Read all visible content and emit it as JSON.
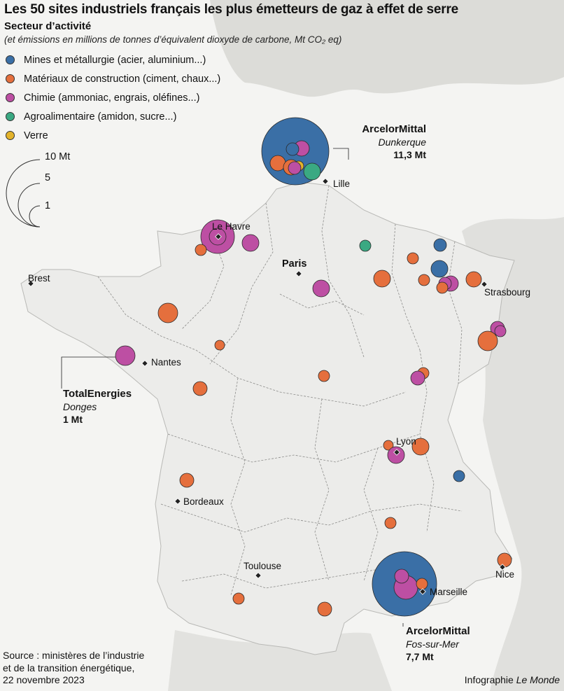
{
  "title": "Les 50 sites industriels français les plus émetteurs de gaz à effet de serre",
  "subtitle": "Secteur d’activité",
  "units_note": "(et émissions en millions de tonnes d’équivalent dioxyde de carbone, Mt CO₂ eq)",
  "colors": {
    "mines": "#3a6fa6",
    "construction": "#e56f3d",
    "chimie": "#bd4fa3",
    "agro": "#3aa982",
    "verre": "#e3b32a"
  },
  "legend": [
    {
      "key": "mines",
      "label": "Mines et métallurgie (acier, aluminium...)"
    },
    {
      "key": "construction",
      "label": "Matériaux de construction (ciment, chaux...)"
    },
    {
      "key": "chimie",
      "label": "Chimie (ammoniac, engrais, oléfines...)"
    },
    {
      "key": "agro",
      "label": "Agroalimentaire (amidon, sucre...)"
    },
    {
      "key": "verre",
      "label": "Verre"
    }
  ],
  "size_legend": [
    {
      "value": 10,
      "label": "10 Mt"
    },
    {
      "value": 5,
      "label": "5"
    },
    {
      "value": 1,
      "label": "1"
    }
  ],
  "cities": {
    "paris": "Paris",
    "lille": "Lille",
    "le_havre": "Le Havre",
    "brest": "Brest",
    "strasbourg": "Strasbourg",
    "nantes": "Nantes",
    "lyon": "Lyon",
    "bordeaux": "Bordeaux",
    "toulouse": "Toulouse",
    "marseille": "Marseille",
    "nice": "Nice"
  },
  "annotations": {
    "dunkerque": {
      "name": "ArcelorMittal",
      "location": "Dunkerque",
      "value": "11,3 Mt"
    },
    "donges": {
      "name": "TotalEnergies",
      "location": "Donges",
      "value": "1 Mt"
    },
    "fos": {
      "name": "ArcelorMittal",
      "location": "Fos-sur-Mer",
      "value": "7,7 Mt"
    }
  },
  "source": {
    "line1": "Source : ministères de l’industrie",
    "line2": "et de la transition énergétique,",
    "line3": "22 novembre 2023"
  },
  "credit": {
    "prefix": "Infographie ",
    "brand": "Le Monde"
  }
}
